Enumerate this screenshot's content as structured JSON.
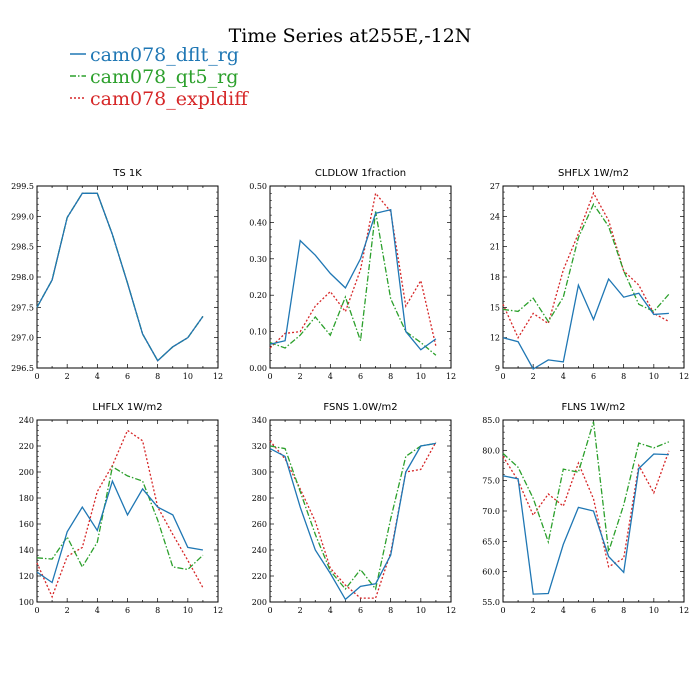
{
  "title": "Time Series at255E,-12N",
  "legend": [
    {
      "name": "cam078_dflt_rg",
      "color": "#1f77b4",
      "dash": "solid"
    },
    {
      "name": "cam078_qt5_rg",
      "color": "#2ca02c",
      "dash": "dashdot"
    },
    {
      "name": "cam078_expldiff",
      "color": "#d62728",
      "dash": "dotted"
    }
  ],
  "chart_data": [
    {
      "type": "line",
      "title": "TS   1K",
      "x": [
        0,
        1,
        2,
        3,
        4,
        5,
        6,
        7,
        8,
        9,
        10,
        11
      ],
      "xlim": [
        0,
        12
      ],
      "xticks": [
        "0",
        "2",
        "4",
        "6",
        "8",
        "10",
        "12"
      ],
      "ylim": [
        296.5,
        299.5
      ],
      "yticks": [
        "296.5",
        "297.0",
        "297.5",
        "298.0",
        "298.5",
        "299.0",
        "299.5"
      ],
      "series": [
        {
          "name": "cam078_dflt_rg",
          "values": [
            297.5,
            297.95,
            298.98,
            299.38,
            299.38,
            298.7,
            297.9,
            297.06,
            296.62,
            296.85,
            297.0,
            297.35
          ]
        },
        {
          "name": "cam078_qt5_rg",
          "values": [
            297.5,
            297.95,
            298.98,
            299.38,
            299.38,
            298.7,
            297.9,
            297.06,
            296.62,
            296.85,
            297.0,
            297.35
          ]
        },
        {
          "name": "cam078_expldiff",
          "values": [
            297.5,
            297.95,
            298.98,
            299.38,
            299.38,
            298.7,
            297.9,
            297.06,
            296.62,
            296.85,
            297.0,
            297.35
          ]
        }
      ]
    },
    {
      "type": "line",
      "title": "CLDLOW   1fraction",
      "x": [
        0,
        1,
        2,
        3,
        4,
        5,
        6,
        7,
        8,
        9,
        10,
        11
      ],
      "xlim": [
        0,
        12
      ],
      "xticks": [
        "0",
        "2",
        "4",
        "6",
        "8",
        "10",
        "12"
      ],
      "ylim": [
        0,
        0.5
      ],
      "yticks": [
        "0.00",
        "0.10",
        "0.20",
        "0.30",
        "0.40",
        "0.50"
      ],
      "series": [
        {
          "name": "cam078_dflt_rg",
          "values": [
            0.065,
            0.075,
            0.35,
            0.31,
            0.26,
            0.22,
            0.3,
            0.425,
            0.435,
            0.1,
            0.05,
            0.08
          ]
        },
        {
          "name": "cam078_qt5_rg",
          "values": [
            0.07,
            0.055,
            0.09,
            0.14,
            0.09,
            0.195,
            0.075,
            0.43,
            0.19,
            0.1,
            0.07,
            0.035
          ]
        },
        {
          "name": "cam078_expldiff",
          "values": [
            0.055,
            0.095,
            0.1,
            0.17,
            0.21,
            0.155,
            0.27,
            0.48,
            0.43,
            0.17,
            0.24,
            0.06
          ]
        }
      ]
    },
    {
      "type": "line",
      "title": "SHFLX   1W/m2",
      "x": [
        0,
        1,
        2,
        3,
        4,
        5,
        6,
        7,
        8,
        9,
        10,
        11
      ],
      "xlim": [
        0,
        12
      ],
      "xticks": [
        "0",
        "2",
        "4",
        "6",
        "8",
        "10",
        "12"
      ],
      "ylim": [
        9,
        27
      ],
      "yticks": [
        "9",
        "12",
        "15",
        "18",
        "21",
        "24",
        "27"
      ],
      "series": [
        {
          "name": "cam078_dflt_rg",
          "values": [
            12.0,
            11.6,
            8.9,
            9.8,
            9.6,
            17.2,
            13.8,
            17.8,
            16.0,
            16.4,
            14.3,
            14.4
          ]
        },
        {
          "name": "cam078_qt5_rg",
          "values": [
            14.8,
            14.6,
            15.9,
            13.6,
            16.0,
            21.9,
            25.2,
            23.0,
            18.6,
            15.3,
            14.6,
            16.3
          ]
        },
        {
          "name": "cam078_expldiff",
          "values": [
            15.3,
            12.0,
            14.4,
            13.4,
            18.7,
            22.3,
            26.3,
            23.6,
            18.6,
            17.2,
            14.4,
            13.6
          ]
        }
      ]
    },
    {
      "type": "line",
      "title": "LHFLX   1W/m2",
      "x": [
        0,
        1,
        2,
        3,
        4,
        5,
        6,
        7,
        8,
        9,
        10,
        11
      ],
      "xlim": [
        0,
        12
      ],
      "xticks": [
        "0",
        "2",
        "4",
        "6",
        "8",
        "10",
        "12"
      ],
      "ylim": [
        100,
        240
      ],
      "yticks": [
        "100",
        "120",
        "140",
        "160",
        "180",
        "200",
        "220",
        "240"
      ],
      "series": [
        {
          "name": "cam078_dflt_rg",
          "values": [
            123,
            115,
            154,
            173,
            155,
            193,
            167,
            187,
            173,
            167,
            142,
            140
          ]
        },
        {
          "name": "cam078_qt5_rg",
          "values": [
            134,
            133,
            150,
            127,
            146,
            204,
            197,
            193,
            163,
            127,
            125,
            136
          ]
        },
        {
          "name": "cam078_expldiff",
          "values": [
            130,
            104,
            135,
            142,
            185,
            205,
            232,
            224,
            173,
            152,
            132,
            111
          ]
        }
      ]
    },
    {
      "type": "line",
      "title": "FSNS   1.0W/m2",
      "x": [
        0,
        1,
        2,
        3,
        4,
        5,
        6,
        7,
        8,
        9,
        10,
        11
      ],
      "xlim": [
        0,
        12
      ],
      "xticks": [
        "0",
        "2",
        "4",
        "6",
        "8",
        "10",
        "12"
      ],
      "ylim": [
        200,
        340
      ],
      "yticks": [
        "200",
        "220",
        "240",
        "260",
        "280",
        "300",
        "320",
        "340"
      ],
      "series": [
        {
          "name": "cam078_dflt_rg",
          "values": [
            318,
            312,
            273,
            240,
            222,
            202,
            212,
            214,
            236,
            300,
            320,
            322
          ]
        },
        {
          "name": "cam078_qt5_rg",
          "values": [
            320,
            318,
            285,
            252,
            224,
            210,
            225,
            210,
            264,
            312,
            320,
            322
          ]
        },
        {
          "name": "cam078_expldiff",
          "values": [
            324,
            310,
            287,
            262,
            226,
            213,
            203,
            203,
            238,
            300,
            302,
            323
          ]
        }
      ]
    },
    {
      "type": "line",
      "title": "FLNS   1W/m2",
      "x": [
        0,
        1,
        2,
        3,
        4,
        5,
        6,
        7,
        8,
        9,
        10,
        11
      ],
      "xlim": [
        0,
        12
      ],
      "xticks": [
        "0",
        "2",
        "4",
        "6",
        "8",
        "10",
        "12"
      ],
      "ylim": [
        55,
        85
      ],
      "yticks": [
        "55.0",
        "60.0",
        "65.0",
        "70.0",
        "75.0",
        "80.0",
        "85.0"
      ],
      "series": [
        {
          "name": "cam078_dflt_rg",
          "values": [
            75.8,
            75.3,
            56.3,
            56.4,
            64.5,
            70.6,
            70.0,
            62.5,
            59.9,
            77.0,
            79.4,
            79.3
          ]
        },
        {
          "name": "cam078_qt5_rg",
          "values": [
            79.5,
            77.2,
            72.1,
            64.9,
            76.9,
            76.4,
            84.7,
            63.3,
            71.0,
            81.2,
            80.4,
            81.4
          ]
        },
        {
          "name": "cam078_expldiff",
          "values": [
            79.0,
            75.0,
            69.3,
            72.8,
            70.8,
            77.9,
            72.0,
            60.8,
            62.2,
            77.5,
            73.0,
            79.9
          ]
        }
      ]
    }
  ]
}
